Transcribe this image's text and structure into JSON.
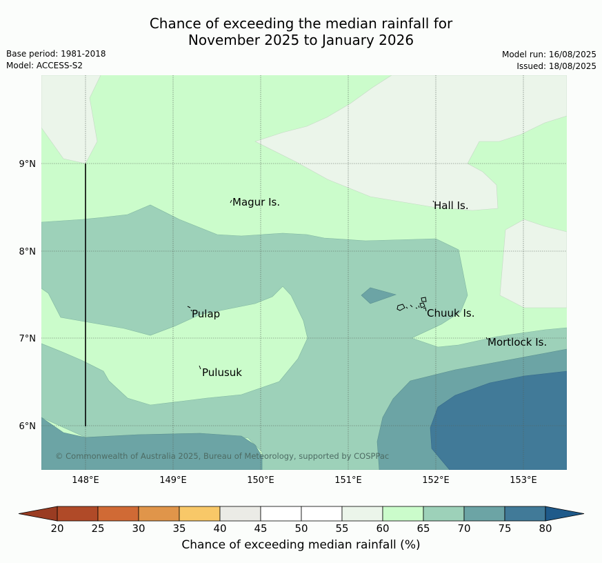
{
  "title": {
    "line1": "Chance of exceeding the median rainfall for",
    "line2": "November 2025 to January 2026"
  },
  "meta": {
    "base_period": "Base period: 1981-2018",
    "model": "Model: ACCESS-S2",
    "model_run": "Model run: 16/08/2025",
    "issued": "Issued: 18/08/2025"
  },
  "map": {
    "lat_labels": [
      "9°N",
      "8°N",
      "7°N",
      "6°N"
    ],
    "lon_labels": [
      "148°E",
      "149°E",
      "150°E",
      "151°E",
      "152°E",
      "153°E"
    ],
    "places": [
      "Magur Is.",
      "Hall Is.",
      "Pulap",
      "Chuuk Is.",
      "Mortlock Is.",
      "Pulusuk"
    ],
    "copyright": "© Commonwealth of Australia 2025, Bureau of Meteorology, supported by COSPPac"
  },
  "colorbar": {
    "ticks": [
      "20",
      "25",
      "30",
      "35",
      "40",
      "45",
      "50",
      "55",
      "60",
      "65",
      "70",
      "75",
      "80"
    ],
    "colors": [
      "#b04a28",
      "#d06a35",
      "#e0954a",
      "#f8c868",
      "#ebebe6",
      "#ffffff",
      "#ffffff",
      "#ebf5ea",
      "#cbfccb",
      "#9dd1b9",
      "#6ca4a5",
      "#417a98"
    ],
    "under_color": "#9a3c22",
    "over_color": "#1f5a8a",
    "label": "Chance of exceeding median rainfall (%)"
  },
  "legend_colors": {
    "c55_60": "#ebf5ea",
    "c60_65": "#cbfccb",
    "c65_70": "#9dd1b9",
    "c70_75": "#6ca4a5",
    "c75_80": "#417a98"
  }
}
